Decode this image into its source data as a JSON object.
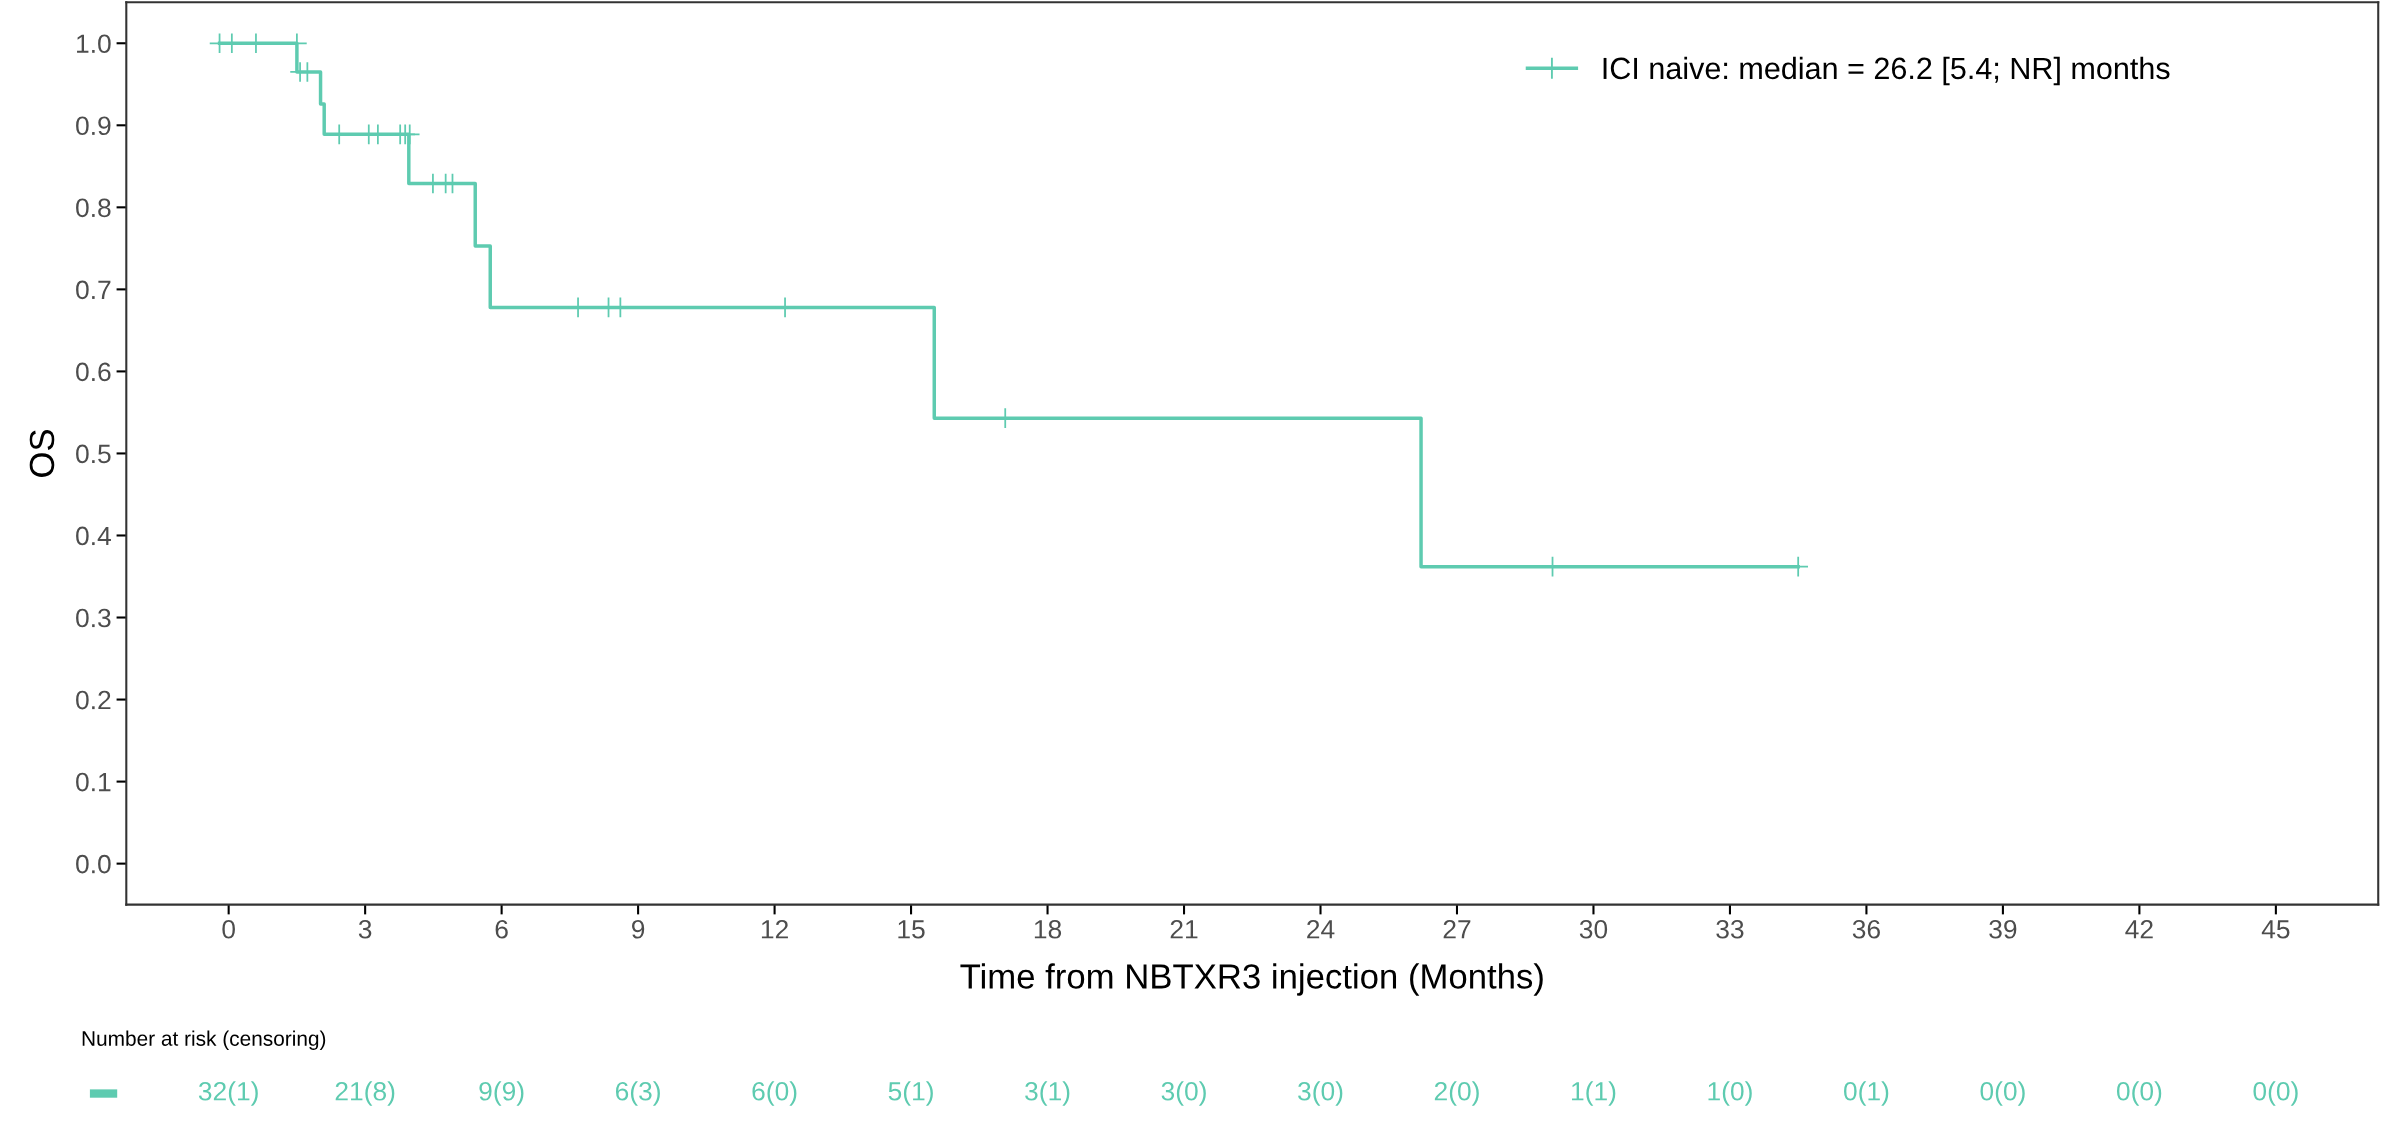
{
  "chart_data": [
    {
      "type": "step",
      "xlabel": "Time from NBTXR3 injection (Months)",
      "ylabel": "OS",
      "series": [
        {
          "name": "ICI naive: median = 26.2 [5.4; NR] months",
          "color": "#5ecbb0",
          "type": "step",
          "marker": "none",
          "x": [
            -0.2,
            1.5,
            2.02,
            2.1,
            3.96,
            5.42,
            5.75,
            15.51,
            26.21,
            34.5
          ],
          "values": [
            1.0,
            0.965,
            0.926,
            0.889,
            0.829,
            0.753,
            0.678,
            0.543,
            0.362,
            0.362
          ]
        },
        {
          "color": "#5ecbb0",
          "type": "scatter",
          "marker": "cross",
          "x": [
            -0.2,
            0.07,
            0.6,
            1.5,
            1.57,
            1.73,
            2.43,
            3.08,
            3.28,
            3.77,
            3.88,
            3.98,
            4.49,
            4.77,
            4.92,
            7.68,
            8.35,
            8.61,
            12.23,
            17.07,
            29.1,
            34.5
          ],
          "values": [
            1.0,
            1.0,
            1.0,
            1.0,
            0.965,
            0.965,
            0.889,
            0.889,
            0.889,
            0.889,
            0.889,
            0.889,
            0.829,
            0.829,
            0.829,
            0.678,
            0.678,
            0.678,
            0.678,
            0.543,
            0.362,
            0.362
          ]
        }
      ],
      "xlim": [
        -2.25,
        47.25
      ],
      "xticks": [
        0,
        3,
        6,
        9,
        12,
        15,
        18,
        21,
        24,
        27,
        30,
        33,
        36,
        39,
        42,
        45
      ],
      "ylim": [
        -0.05,
        1.05
      ],
      "yticks": [
        {
          "value": 0,
          "label": "0.0"
        },
        {
          "value": 0.1,
          "label": "0.1"
        },
        {
          "value": 0.2,
          "label": "0.2"
        },
        {
          "value": 0.3,
          "label": "0.3"
        },
        {
          "value": 0.4,
          "label": "0.4"
        },
        {
          "value": 0.5,
          "label": "0.5"
        },
        {
          "value": 0.6,
          "label": "0.6"
        },
        {
          "value": 0.7,
          "label": "0.7"
        },
        {
          "value": 0.8,
          "label": "0.8"
        },
        {
          "value": 0.9,
          "label": "0.9"
        },
        {
          "value": 1,
          "label": "1.0"
        }
      ],
      "grid": false,
      "legend": "top right"
    },
    {
      "type": "other",
      "title": "Number at risk (censoring)",
      "color": "#5ecbb0",
      "categories": [
        "32(1)",
        "21(8)",
        "9(9)",
        "6(3)",
        "6(0)",
        "5(1)",
        "3(1)",
        "3(0)",
        "3(0)",
        "2(0)",
        "1(1)",
        "1(0)",
        "0(1)",
        "0(0)",
        "0(0)",
        "0(0)"
      ]
    }
  ]
}
